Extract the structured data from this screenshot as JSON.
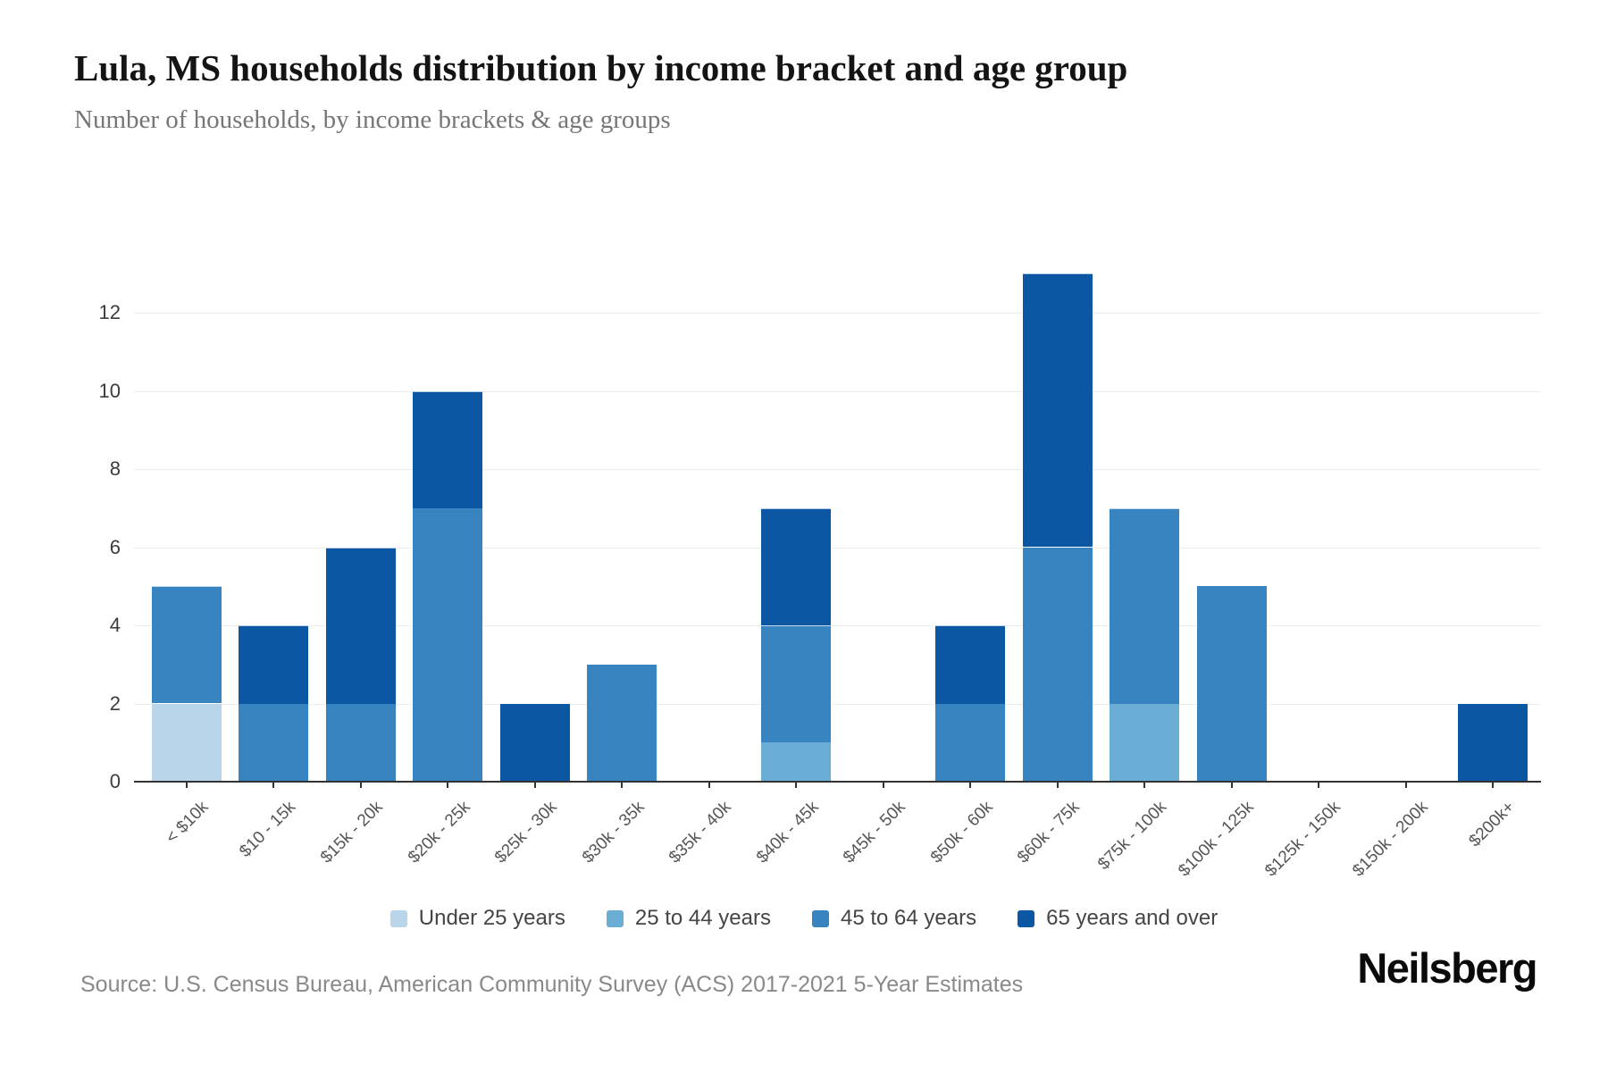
{
  "header": {
    "title": "Lula, MS households distribution by income bracket and age group",
    "subtitle": "Number of households, by income brackets & age groups"
  },
  "chart_data": {
    "type": "bar",
    "stacked": true,
    "title": "Lula, MS households distribution by income bracket and age group",
    "xlabel": "",
    "ylabel": "",
    "categories": [
      "< $10k",
      "$10 - 15k",
      "$15k - 20k",
      "$20k - 25k",
      "$25k - 30k",
      "$30k - 35k",
      "$35k - 40k",
      "$40k - 45k",
      "$45k - 50k",
      "$50k - 60k",
      "$60k - 75k",
      "$75k - 100k",
      "$100k - 125k",
      "$125k - 150k",
      "$150k - 200k",
      "$200k+"
    ],
    "series": [
      {
        "name": "Under 25 years",
        "color": "#b9d5e9",
        "values": [
          2,
          0,
          0,
          0,
          0,
          0,
          0,
          0,
          0,
          0,
          0,
          0,
          0,
          0,
          0,
          0
        ]
      },
      {
        "name": "25 to 44 years",
        "color": "#6aaed6",
        "values": [
          0,
          0,
          0,
          0,
          0,
          0,
          0,
          1,
          0,
          0,
          0,
          2,
          0,
          0,
          0,
          0
        ]
      },
      {
        "name": "45 to 64 years",
        "color": "#3784c0",
        "values": [
          3,
          2,
          2,
          7,
          0,
          3,
          0,
          3,
          0,
          2,
          6,
          5,
          5,
          0,
          0,
          0
        ]
      },
      {
        "name": "65 years and over",
        "color": "#0b57a4",
        "values": [
          0,
          2,
          4,
          3,
          2,
          0,
          0,
          3,
          0,
          2,
          7,
          0,
          0,
          0,
          0,
          2
        ]
      }
    ],
    "totals": [
      5,
      4,
      6,
      10,
      2,
      3,
      0,
      7,
      0,
      4,
      13,
      7,
      5,
      0,
      0,
      2
    ],
    "yticks": [
      0,
      2,
      4,
      6,
      8,
      10,
      12
    ],
    "ylim": [
      0,
      13.5
    ],
    "grid": "horizontal",
    "legend_position": "bottom"
  },
  "footer": {
    "source": "Source: U.S. Census Bureau, American Community Survey (ACS) 2017-2021 5-Year Estimates",
    "logo": "Neilsberg"
  }
}
